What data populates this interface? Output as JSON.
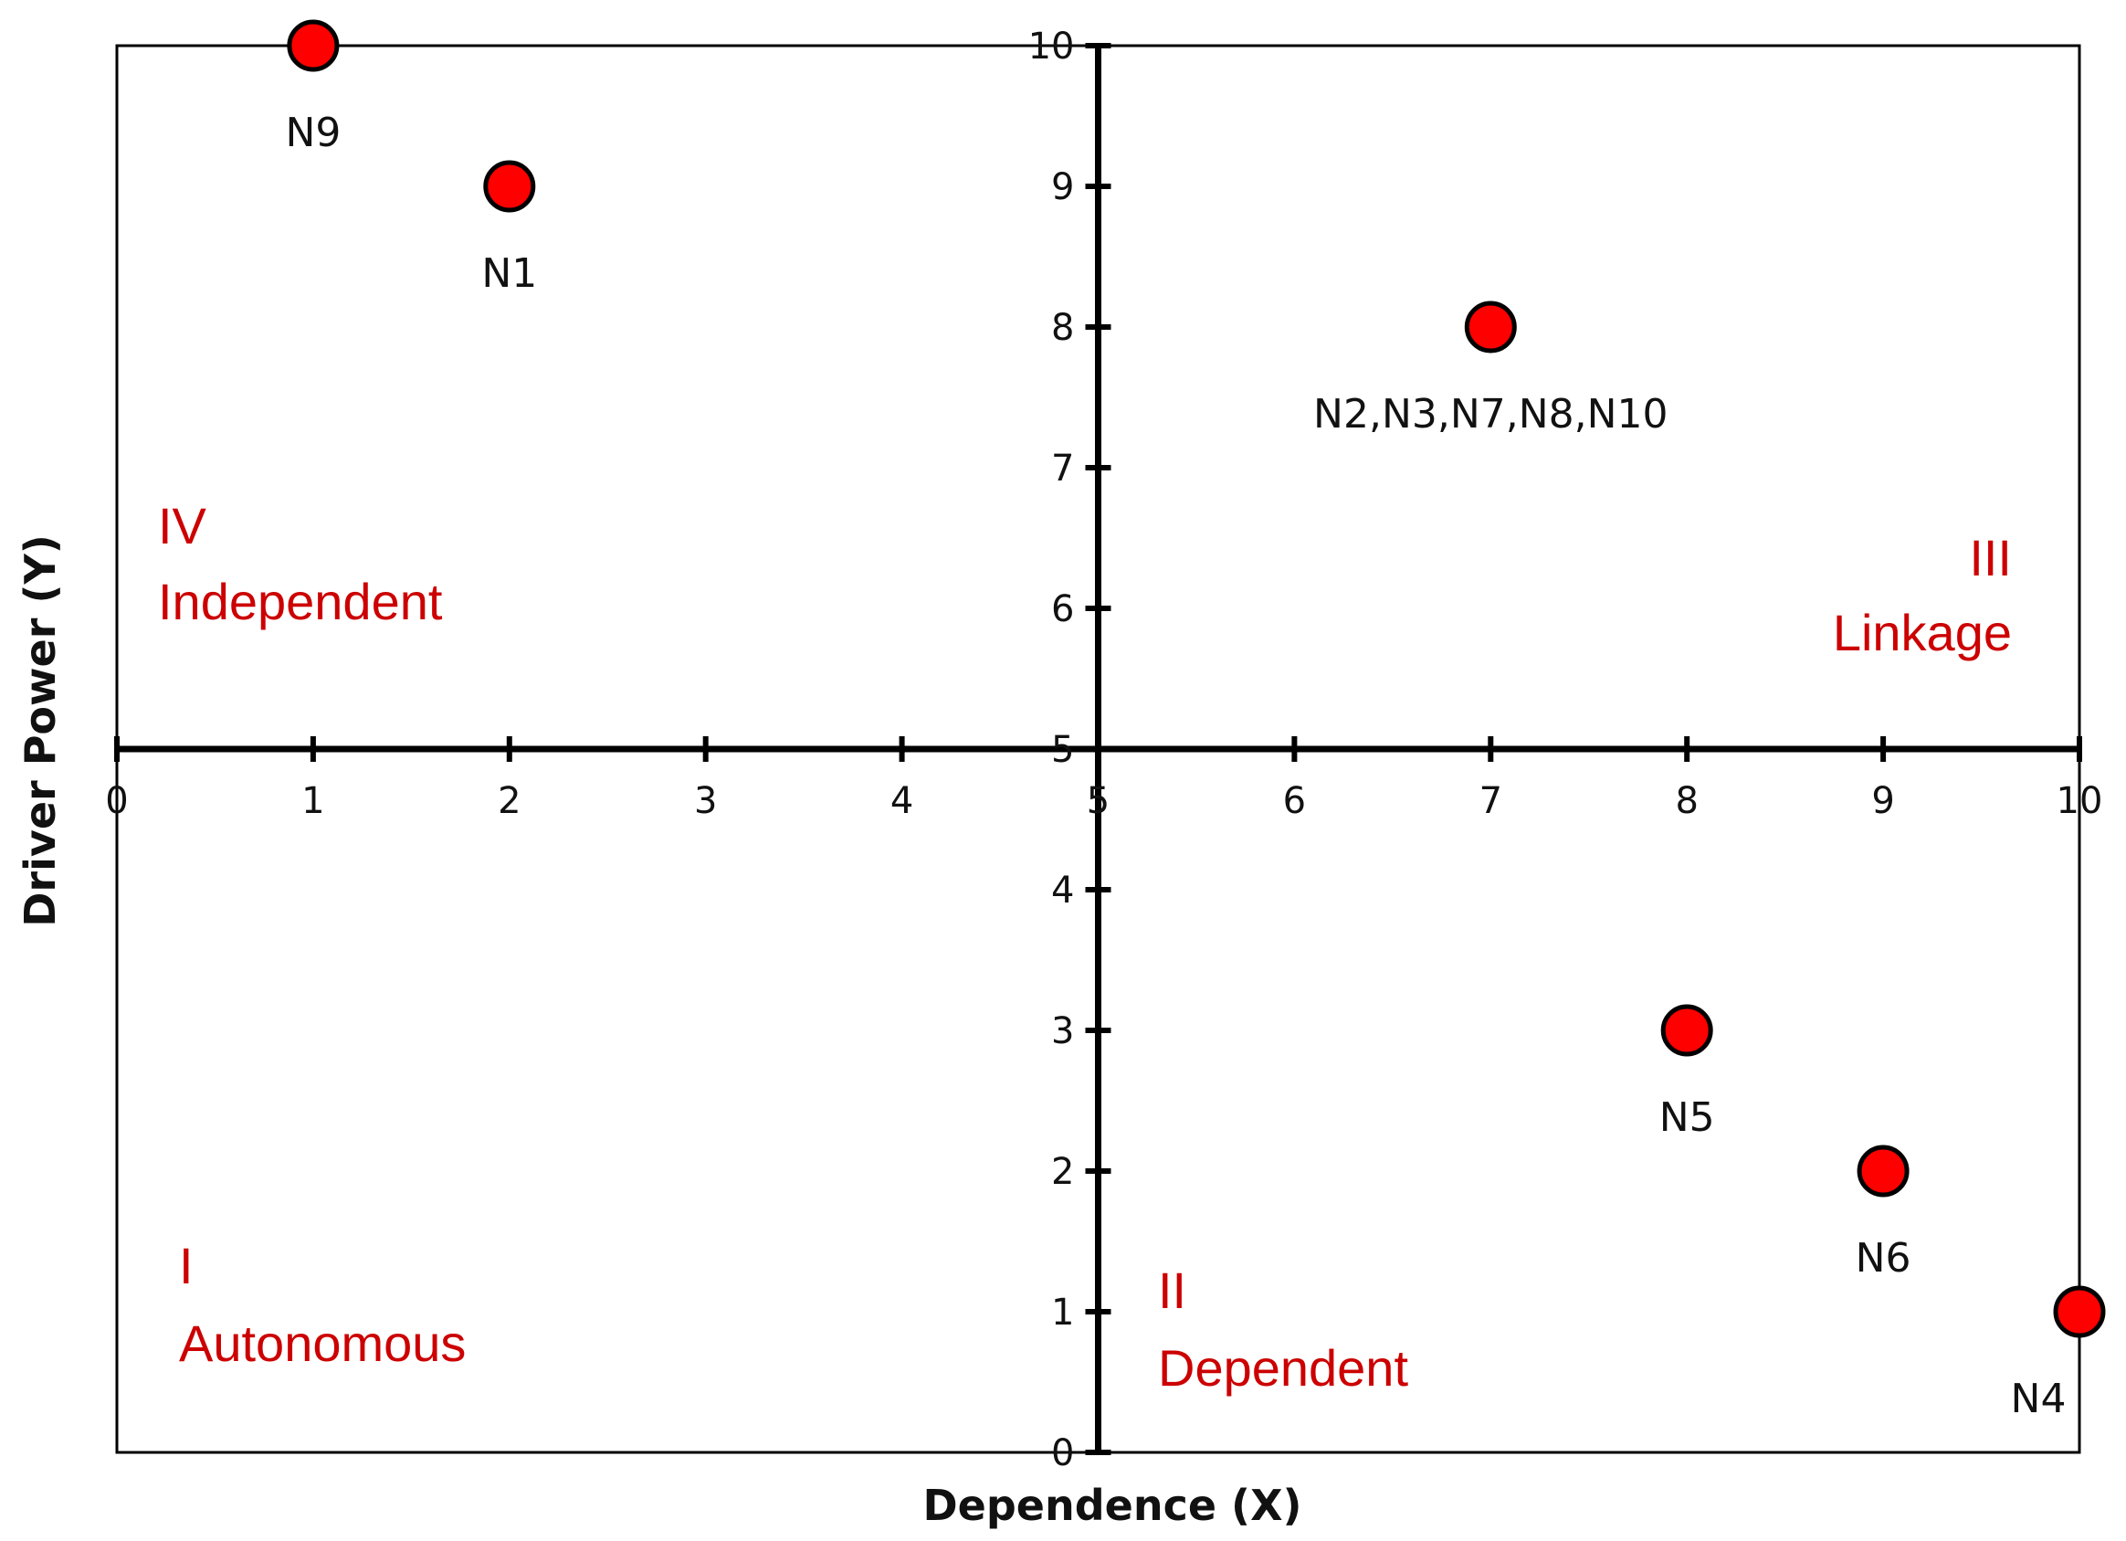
{
  "chart_data": {
    "type": "scatter",
    "xlabel": "Dependence (X)",
    "ylabel": "Driver Power (Y)",
    "xlim": [
      0,
      10
    ],
    "ylim": [
      0,
      10
    ],
    "x_ticks": [
      "0",
      "1",
      "2",
      "3",
      "4",
      "5",
      "6",
      "7",
      "8",
      "9",
      "10"
    ],
    "y_ticks": [
      "0",
      "1",
      "2",
      "3",
      "4",
      "5",
      "6",
      "7",
      "8",
      "9",
      "10"
    ],
    "grid": false,
    "quadrant_divider": {
      "x": 5,
      "y": 5
    },
    "points": [
      {
        "x": 1,
        "y": 10,
        "label": "N9"
      },
      {
        "x": 2,
        "y": 9,
        "label": "N1"
      },
      {
        "x": 7,
        "y": 8,
        "label": "N2,N3,N7,N8,N10"
      },
      {
        "x": 8,
        "y": 3,
        "label": "N5"
      },
      {
        "x": 9,
        "y": 2,
        "label": "N6"
      },
      {
        "x": 10,
        "y": 1,
        "label": "N4"
      }
    ],
    "quadrants": [
      {
        "numeral": "I",
        "name": "Autonomous"
      },
      {
        "numeral": "II",
        "name": "Dependent"
      },
      {
        "numeral": "III",
        "name": "Linkage"
      },
      {
        "numeral": "IV",
        "name": "Independent"
      }
    ],
    "colors": {
      "point_fill": "#ff0000",
      "point_stroke": "#000000",
      "quadrant_text": "#cc0000",
      "axis": "#000000"
    }
  }
}
